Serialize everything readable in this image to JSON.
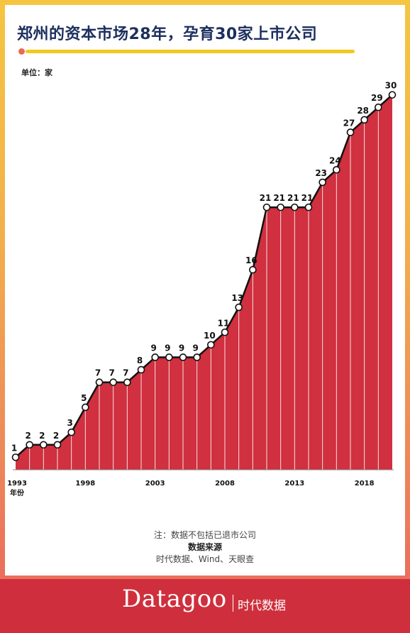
{
  "header": {
    "title": "郑州的资本市场28年，孕育30家上市公司",
    "unit_label": "单位：家"
  },
  "chart_data": {
    "type": "area",
    "title": "郑州的资本市场28年，孕育30家上市公司",
    "ylabel": "单位：家",
    "xlabel": "年份",
    "x": [
      1993,
      1994,
      1995,
      1996,
      1997,
      1998,
      1999,
      2000,
      2001,
      2002,
      2003,
      2004,
      2005,
      2006,
      2007,
      2008,
      2009,
      2010,
      2011,
      2012,
      2013,
      2014,
      2015,
      2016,
      2017,
      2018,
      2019,
      2020
    ],
    "values": [
      1,
      2,
      2,
      2,
      3,
      5,
      7,
      7,
      7,
      8,
      9,
      9,
      9,
      9,
      10,
      11,
      13,
      16,
      21,
      21,
      21,
      21,
      23,
      24,
      27,
      28,
      29,
      30
    ],
    "x_tick_labels": [
      "1993",
      "1998",
      "2003",
      "2008",
      "2013",
      "2018"
    ],
    "ylim": [
      0,
      31
    ],
    "grid": false,
    "legend": "none",
    "colors": {
      "fill": "#d0303f",
      "line": "#111111",
      "marker_fill": "#ffffff"
    }
  },
  "footnote": {
    "note": "注：数据不包括已退市公司",
    "source_title": "数据来源",
    "source": "时代数据、Wind、天眼查"
  },
  "brand": {
    "logo": "Datagoo",
    "name_cn": "时代数据"
  }
}
